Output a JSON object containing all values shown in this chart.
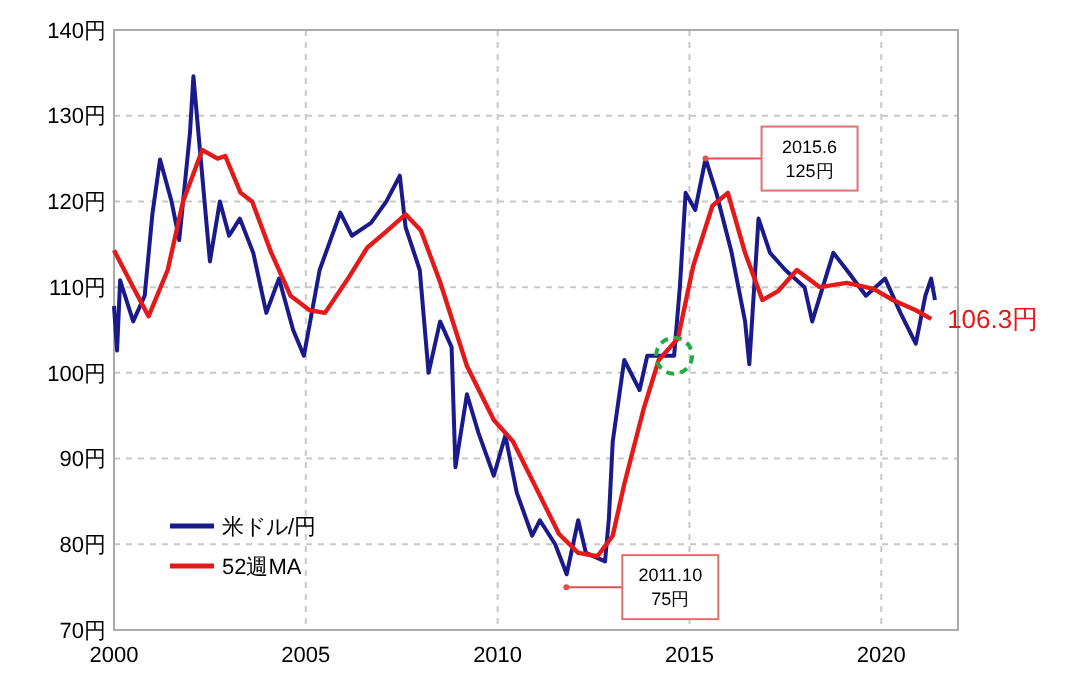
{
  "chart_data": {
    "type": "line",
    "xlim": [
      2000,
      2022
    ],
    "xticks": [
      2000,
      2005,
      2010,
      2015,
      2020
    ],
    "ylim": [
      70,
      140
    ],
    "yticks": [
      {
        "value": 70,
        "label": "70円"
      },
      {
        "value": 80,
        "label": "80円"
      },
      {
        "value": 90,
        "label": "90円"
      },
      {
        "value": 100,
        "label": "100円"
      },
      {
        "value": 110,
        "label": "110円"
      },
      {
        "value": 120,
        "label": "120円"
      },
      {
        "value": 130,
        "label": "130円"
      },
      {
        "value": 140,
        "label": "140円"
      }
    ],
    "grid": true,
    "legend": "bottom left",
    "line_style": "solid",
    "marker": "none",
    "series": [
      {
        "name": "米ドル/円",
        "color": "#1a1a8c",
        "x": [
          2000.0,
          2000.08,
          2000.16,
          2000.5,
          2000.8,
          2001.0,
          2001.2,
          2001.5,
          2001.7,
          2001.98,
          2002.07,
          2002.24,
          2002.5,
          2002.76,
          2003.0,
          2003.28,
          2003.63,
          2003.97,
          2004.3,
          2004.67,
          2004.95,
          2005.36,
          2005.9,
          2006.2,
          2006.7,
          2007.1,
          2007.45,
          2007.6,
          2007.97,
          2008.2,
          2008.5,
          2008.8,
          2008.9,
          2009.2,
          2009.5,
          2009.9,
          2010.2,
          2010.5,
          2010.9,
          2011.1,
          2011.5,
          2011.8,
          2012.1,
          2012.3,
          2012.8,
          2012.9,
          2013.0,
          2013.3,
          2013.7,
          2013.9,
          2014.1,
          2014.6,
          2014.75,
          2014.9,
          2015.15,
          2015.42,
          2015.7,
          2016.1,
          2016.45,
          2016.56,
          2016.8,
          2017.1,
          2017.5,
          2018.0,
          2018.2,
          2018.75,
          2019.1,
          2019.6,
          2020.1,
          2020.5,
          2020.9,
          2021.15,
          2021.3,
          2021.4
        ],
        "values": [
          107.8,
          102.6,
          110.8,
          106,
          109,
          118.5,
          124.9,
          120,
          115.5,
          128,
          134.6,
          126,
          113,
          120,
          116,
          118,
          114,
          107,
          111,
          105,
          102,
          112,
          118.7,
          116,
          117.5,
          120,
          123,
          117,
          112,
          100,
          106,
          103,
          89,
          97.5,
          93,
          88,
          92.7,
          86,
          81,
          82.8,
          80,
          76.5,
          82.8,
          79,
          78,
          83,
          92,
          101.5,
          98,
          102,
          102,
          102,
          110,
          121,
          119,
          125,
          121,
          114,
          106,
          101,
          118,
          114,
          112,
          110,
          106,
          114,
          112,
          109,
          111,
          107,
          103.4,
          109,
          111,
          108.5
        ]
      },
      {
        "name": "52週MA",
        "color": "#e41a1a",
        "x": [
          2000.0,
          2000.5,
          2000.9,
          2001.4,
          2001.8,
          2002.3,
          2002.7,
          2002.9,
          2003.3,
          2003.6,
          2004.1,
          2004.6,
          2005.1,
          2005.5,
          2006.1,
          2006.6,
          2007.1,
          2007.6,
          2008.0,
          2008.5,
          2009.2,
          2009.9,
          2010.4,
          2010.9,
          2011.6,
          2012.1,
          2012.6,
          2013.0,
          2013.3,
          2013.8,
          2014.2,
          2014.7,
          2015.1,
          2015.6,
          2016.0,
          2016.45,
          2016.9,
          2017.3,
          2017.8,
          2018.4,
          2019.1,
          2019.8,
          2020.3,
          2020.9,
          2021.3
        ],
        "values": [
          114.3,
          110,
          106.6,
          112,
          120,
          126,
          125,
          125.3,
          121,
          120,
          114,
          109,
          107.3,
          107,
          111,
          114.6,
          116.5,
          118.5,
          116.6,
          110.6,
          100.8,
          94.5,
          92,
          87.5,
          81.2,
          79,
          78.6,
          81,
          87,
          95.7,
          101.5,
          104,
          112.5,
          119.5,
          121,
          114,
          108.5,
          109.5,
          112,
          110,
          110.5,
          109.8,
          108.5,
          107.3,
          106.3
        ]
      }
    ],
    "annotations": [
      {
        "text": "2015.6\n125円",
        "x": 2015.42,
        "y": 125
      },
      {
        "text": "2011.10\n75円",
        "x": 2011.79,
        "y": 75
      },
      {
        "text": "106.3円",
        "x": 2021.3,
        "y": 106.3
      }
    ]
  }
}
